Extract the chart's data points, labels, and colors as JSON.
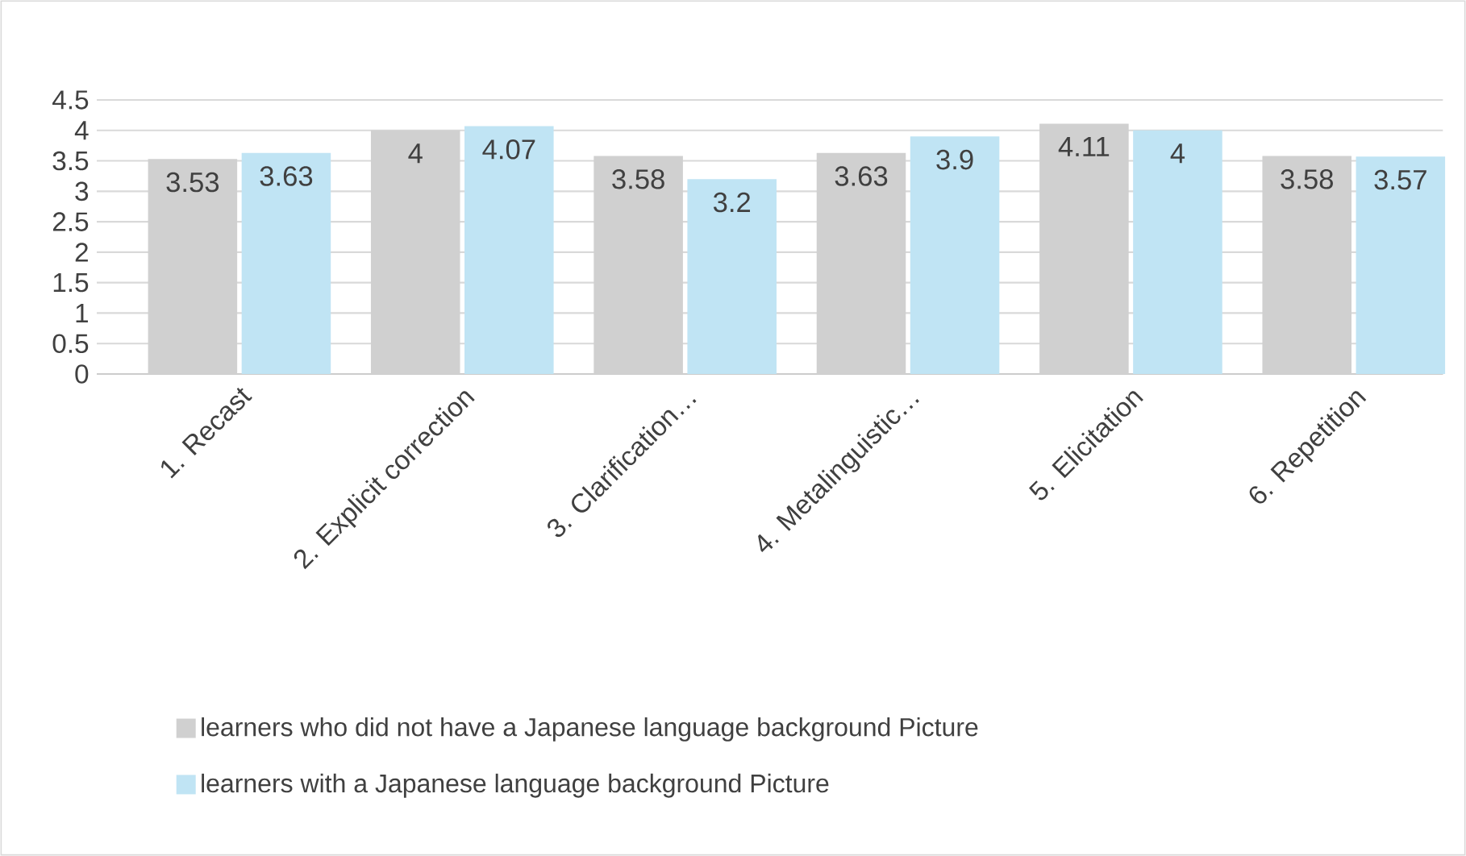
{
  "chart_data": {
    "type": "bar",
    "categories": [
      "1. Recast",
      "2. Explicit correction",
      "3. Clarification…",
      "4. Metalinguistic…",
      "5. Elicitation",
      "6. Repetition"
    ],
    "series": [
      {
        "name": "learners who did not have a Japanese language background Picture",
        "color": "#d0d0d0",
        "values": [
          3.53,
          4,
          3.58,
          3.63,
          4.11,
          3.58
        ]
      },
      {
        "name": "learners with a Japanese language background Picture",
        "color": "#c0e4f4",
        "values": [
          3.63,
          4.07,
          3.2,
          3.9,
          4,
          3.57
        ]
      }
    ],
    "ylim": [
      0,
      4.5
    ],
    "yticks": [
      0,
      0.5,
      1,
      1.5,
      2,
      2.5,
      3,
      3.5,
      4,
      4.5
    ],
    "grid": "y",
    "legend": "bottom",
    "data_labels": true
  }
}
